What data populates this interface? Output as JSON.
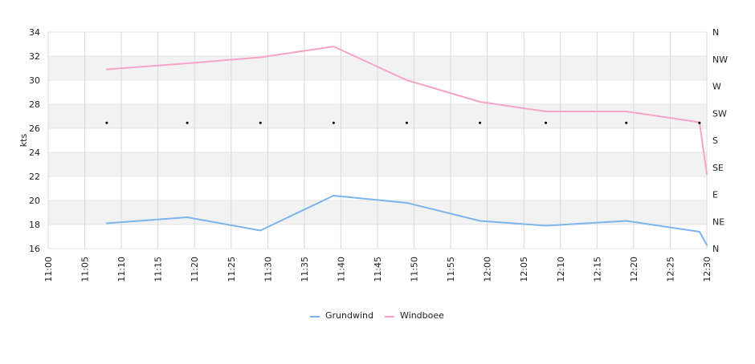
{
  "chart_data": {
    "type": "line",
    "title": "",
    "xlabel": "",
    "ylabel": "kts",
    "ylim": [
      16,
      34
    ],
    "yticks": [
      16,
      18,
      20,
      22,
      24,
      26,
      28,
      30,
      32,
      34
    ],
    "xlim": [
      "11:00",
      "12:30"
    ],
    "xticks": [
      "11:00",
      "11:05",
      "11:10",
      "11:15",
      "11:20",
      "11:25",
      "11:30",
      "11:35",
      "11:40",
      "11:45",
      "11:50",
      "11:55",
      "12:00",
      "12:05",
      "12:10",
      "12:15",
      "12:20",
      "12:25",
      "12:30"
    ],
    "y2_ticks": [
      "N",
      "NE",
      "E",
      "SE",
      "S",
      "SW",
      "W",
      "NW",
      "N"
    ],
    "grid": true,
    "legend_position": "bottom",
    "series": [
      {
        "name": "Grundwind",
        "color": "#7cb5ec",
        "x": [
          "11:08",
          "11:19",
          "11:29",
          "11:39",
          "11:49",
          "11:59",
          "12:08",
          "12:19",
          "12:29",
          "12:30"
        ],
        "y": [
          18.1,
          18.6,
          17.5,
          20.4,
          19.8,
          18.3,
          17.9,
          18.3,
          17.4,
          16.3
        ]
      },
      {
        "name": "Windboee",
        "color": "#f7a3c8",
        "x": [
          "11:08",
          "11:19",
          "11:29",
          "11:39",
          "11:49",
          "11:59",
          "12:08",
          "12:19",
          "12:29",
          "12:30"
        ],
        "y": [
          30.9,
          31.4,
          31.9,
          32.8,
          30.0,
          28.2,
          27.4,
          27.4,
          26.5,
          22.2
        ]
      }
    ],
    "direction_markers": {
      "x": [
        "11:08",
        "11:19",
        "11:29",
        "11:39",
        "11:49",
        "11:59",
        "12:08",
        "12:19",
        "12:29"
      ],
      "direction": [
        "SW",
        "SW",
        "SW",
        "SW",
        "SW",
        "SW",
        "SW",
        "SW",
        "SW"
      ]
    }
  }
}
